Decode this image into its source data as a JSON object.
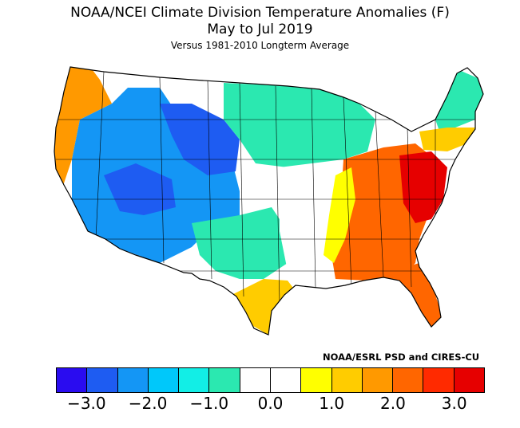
{
  "header": {
    "title": "NOAA/NCEI Climate Division Temperature Anomalies (F)",
    "period": "May to Jul 2019",
    "subtitle": "Versus 1981-2010 Longterm Average"
  },
  "credit": "NOAA/ESRL PSD and CIRES-CU",
  "legend": {
    "colors": [
      "#2a0cf0",
      "#1e5cf2",
      "#1496f5",
      "#00c8fa",
      "#12eee6",
      "#2be8b0",
      "#ffffff",
      "#ffffff",
      "#ffff00",
      "#ffcc00",
      "#ff9900",
      "#ff6600",
      "#ff2a00",
      "#e60000"
    ],
    "ticks": [
      {
        "label": "−3.0",
        "value": -3.0
      },
      {
        "label": "−2.0",
        "value": -2.0
      },
      {
        "label": "−1.0",
        "value": -1.0
      },
      {
        "label": "0.0",
        "value": 0.0
      },
      {
        "label": "1.0",
        "value": 1.0
      },
      {
        "label": "2.0",
        "value": 2.0
      },
      {
        "label": "3.0",
        "value": 3.0
      }
    ],
    "min": -3.5,
    "max": 3.5
  },
  "map": {
    "region": "Contiguous United States",
    "regional_anomalies": [
      {
        "region": "Pacific Northwest coast",
        "color": "#ff9900"
      },
      {
        "region": "Northern Rockies and High Plains",
        "color": "#1e5cf2"
      },
      {
        "region": "Great Basin and Southwest",
        "color": "#1496f5"
      },
      {
        "region": "Upper Midwest",
        "color": "#2be8b0"
      },
      {
        "region": "Mississippi Valley",
        "color": "#ffffff"
      },
      {
        "region": "Southeast",
        "color": "#ff6600"
      },
      {
        "region": "Mid-Atlantic",
        "color": "#e60000"
      },
      {
        "region": "New England",
        "color": "#2be8b0"
      },
      {
        "region": "Texas Gulf coast",
        "color": "#ffcc00"
      },
      {
        "region": "Florida",
        "color": "#ff6600"
      }
    ]
  }
}
